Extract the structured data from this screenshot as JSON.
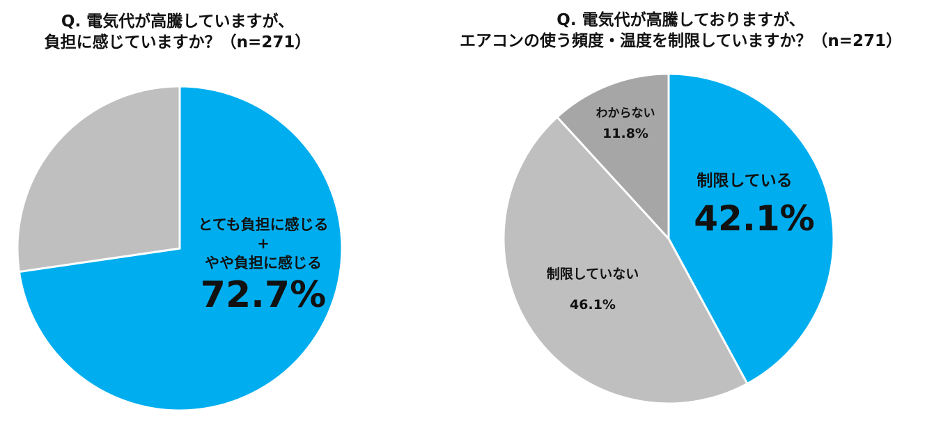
{
  "chart_data": [
    {
      "type": "pie",
      "title_line1": "Q. 電気代が高騰していますが、",
      "title_line2": "負担に感じていますか？（n=271）",
      "slices": [
        {
          "label_line1": "とても負担に感じる",
          "label_plus": "+",
          "label_line2": "やや負担に感じる",
          "value": 72.7,
          "value_label": "72.7%",
          "color": "#00aeef"
        },
        {
          "label": "",
          "value": 27.3,
          "value_label": "",
          "color": "#bfbfbf"
        }
      ]
    },
    {
      "type": "pie",
      "title_line1": "Q. 電気代が高騰しておりますが、",
      "title_line2": "エアコンの使う頻度・温度を制限していますか？（n=271）",
      "slices": [
        {
          "label": "制限している",
          "value": 42.1,
          "value_label": "42.1%",
          "color": "#00aeef"
        },
        {
          "label": "制限していない",
          "value": 46.1,
          "value_label": "46.1%",
          "color": "#bfbfbf"
        },
        {
          "label": "わからない",
          "value": 11.8,
          "value_label": "11.8%",
          "color": "#a6a6a6"
        }
      ]
    }
  ]
}
